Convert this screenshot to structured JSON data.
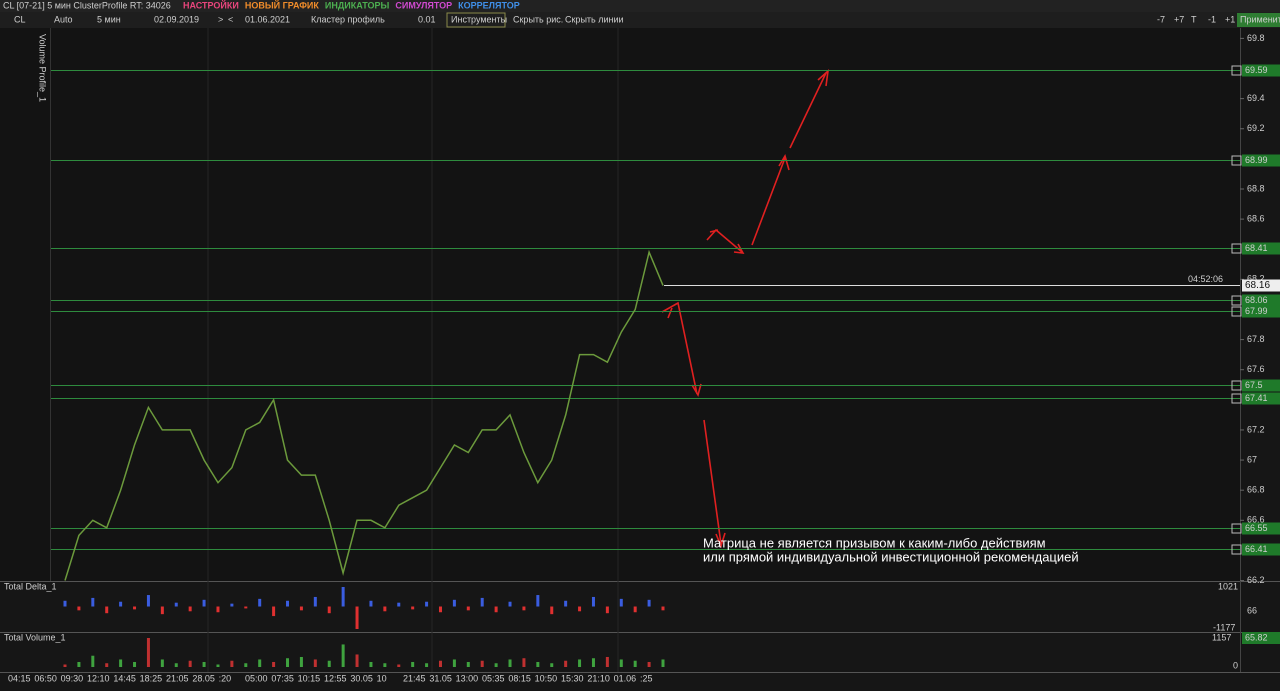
{
  "toolbar": {
    "title": "CL [07-21] 5 мин ClusterProfile RT: 34026",
    "menu": [
      {
        "label": "НАСТРОЙКИ",
        "color": "#e8457c"
      },
      {
        "label": "НОВЫЙ ГРАФИК",
        "color": "#f08c2a"
      },
      {
        "label": "ИНДИКАТОРЫ",
        "color": "#4caf50"
      },
      {
        "label": "СИМУЛЯТОР",
        "color": "#d04ad0"
      },
      {
        "label": "КОРРЕЛЯТОР",
        "color": "#3f8fe8"
      }
    ],
    "controls": [
      "CL",
      "Auto",
      "5 мин",
      "02.09.2019",
      ">",
      "<",
      "01.06.2021",
      "Кластер профиль",
      "0.01",
      "Инструменты",
      "Скрыть рис.",
      "Скрыть линии"
    ],
    "right_buttons": [
      "-7",
      "+7",
      "T",
      "-1",
      "+1"
    ],
    "apply": "Применить"
  },
  "side_label": "Volume Profile_1",
  "price": {
    "ylim": [
      66.197,
      69.869
    ],
    "yticks": [
      69.8,
      69.4,
      69.2,
      68.8,
      68.6,
      68.2,
      67.8,
      67.6,
      67.2,
      67,
      66.8,
      66.6,
      66.2
    ],
    "levels": [
      69.59,
      68.99,
      68.41,
      68.06,
      67.99,
      67.5,
      67.41,
      66.55,
      66.41
    ],
    "current": 68.16,
    "timer": "04:52:06",
    "values": [
      66.2,
      66.5,
      66.6,
      66.55,
      66.8,
      67.1,
      67.35,
      67.2,
      67.2,
      67.2,
      67.0,
      66.85,
      66.95,
      67.2,
      67.25,
      67.4,
      67.0,
      66.9,
      66.9,
      66.6,
      66.25,
      66.6,
      66.6,
      66.55,
      66.7,
      66.75,
      66.8,
      66.95,
      67.1,
      67.05,
      67.2,
      67.2,
      67.3,
      67.05,
      66.85,
      67.0,
      67.3,
      67.7,
      67.7,
      67.65,
      67.85,
      68.0,
      68.38,
      68.16
    ]
  },
  "delta": {
    "title": "Total Delta_1",
    "ylim": [
      -1177,
      1021
    ],
    "max_label": 1021,
    "min_label": -1177,
    "axis_price": 66,
    "values": [
      300,
      -200,
      450,
      -350,
      250,
      -150,
      600,
      -400,
      200,
      -250,
      350,
      -300,
      150,
      -100,
      400,
      -500,
      300,
      -200,
      500,
      -350,
      1021,
      -1177,
      300,
      -250,
      200,
      -150,
      250,
      -300,
      350,
      -200,
      450,
      -300,
      250,
      -200,
      600,
      -400,
      300,
      -250,
      500,
      -350,
      400,
      -300,
      350,
      -200
    ]
  },
  "volume": {
    "title": "Total Volume_1",
    "ylim": [
      0,
      1157
    ],
    "max_label": 1157,
    "min_label": 0,
    "axis_price": 65.82,
    "values": [
      100,
      200,
      450,
      150,
      300,
      200,
      1157,
      300,
      150,
      250,
      200,
      100,
      250,
      150,
      300,
      200,
      350,
      400,
      300,
      250,
      900,
      500,
      200,
      150,
      100,
      200,
      150,
      250,
      300,
      200,
      250,
      150,
      300,
      350,
      200,
      150,
      250,
      300,
      350,
      400,
      300,
      250,
      200,
      300
    ]
  },
  "time_axis": [
    "04:15",
    "06:50",
    "09:30",
    "12:10",
    "14:45",
    "18:25",
    "21:05",
    "28.05",
    ":20",
    "05:00",
    "07:35",
    "10:15",
    "12:55",
    "30.05",
    "10",
    "21:45",
    "31.05",
    "13:00",
    "05:35",
    "08:15",
    "10:50",
    "15:30",
    "21:10",
    "01.06",
    ":25"
  ],
  "disclaimer": [
    "Матрица не является призывом к каким-либо действиям",
    "или прямой индивидуальной инвестиционной рекомендацией"
  ]
}
